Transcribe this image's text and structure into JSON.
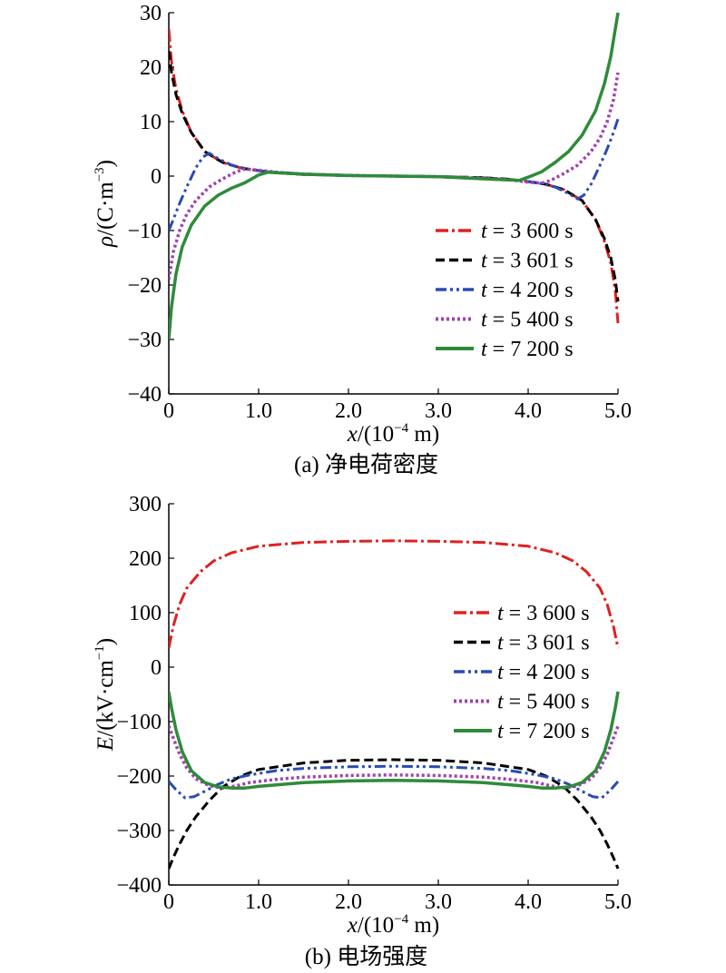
{
  "chart_data": [
    {
      "id": "a",
      "type": "line",
      "caption": "(a) 净电荷密度",
      "ylabel_symbol": "ρ",
      "ylabel_unit": "/(C·m",
      "ylabel_sup": "−3",
      "ylabel_close": ")",
      "xlabel_symbol": "x",
      "xlabel_unit": "/(10",
      "xlabel_sup": "−4",
      "xlabel_close": " m)",
      "xlim": [
        0,
        5
      ],
      "ylim": [
        -40,
        30
      ],
      "xticks": [
        0,
        1,
        2,
        3,
        4,
        5
      ],
      "xtick_labels": [
        "0",
        "1.0",
        "2.0",
        "3.0",
        "4.0",
        "5.0"
      ],
      "yticks": [
        -40,
        -30,
        -20,
        -10,
        0,
        10,
        20,
        30
      ],
      "ytick_labels": [
        "−40",
        "−30",
        "−20",
        "−10",
        "0",
        "10",
        "20",
        "30"
      ],
      "legend_position": "right",
      "series": [
        {
          "name": "t = 3 600 s",
          "color": "#e02020",
          "dash": "14,4,3,4",
          "width": 3,
          "x": [
            0,
            0.03,
            0.08,
            0.15,
            0.25,
            0.4,
            0.6,
            0.8,
            1.0,
            1.2,
            1.5,
            2.0,
            2.5,
            3.0,
            3.5,
            3.8,
            4.0,
            4.2,
            4.4,
            4.6,
            4.75,
            4.85,
            4.92,
            4.97,
            5.0
          ],
          "y": [
            27,
            21,
            16,
            12,
            8,
            4.5,
            2.5,
            1.5,
            1.0,
            0.6,
            0.3,
            0.1,
            0,
            -0.1,
            -0.3,
            -0.6,
            -1.0,
            -1.5,
            -2.5,
            -4.5,
            -8,
            -12,
            -16,
            -21,
            -27
          ]
        },
        {
          "name": "t = 3 601 s",
          "color": "#000000",
          "dash": "10,5",
          "width": 3,
          "x": [
            0,
            0.03,
            0.08,
            0.15,
            0.25,
            0.4,
            0.6,
            0.8,
            1.0,
            1.2,
            1.5,
            2.0,
            2.5,
            3.0,
            3.5,
            3.8,
            4.0,
            4.2,
            4.4,
            4.6,
            4.75,
            4.85,
            4.92,
            4.97,
            5.0
          ],
          "y": [
            23,
            19,
            15,
            11.5,
            8,
            4.5,
            2.5,
            1.5,
            1.0,
            0.6,
            0.3,
            0.1,
            0,
            -0.1,
            -0.3,
            -0.6,
            -1.0,
            -1.5,
            -2.5,
            -4.5,
            -8,
            -11.5,
            -15,
            -19,
            -23
          ]
        },
        {
          "name": "t = 4 200 s",
          "color": "#2a4bb5",
          "dash": "12,4,3,4,3,4",
          "width": 3,
          "x": [
            0,
            0.05,
            0.12,
            0.2,
            0.3,
            0.38,
            0.45,
            0.55,
            0.7,
            0.9,
            1.1,
            1.5,
            2.0,
            2.5,
            3.0,
            3.5,
            3.9,
            4.1,
            4.3,
            4.45,
            4.55,
            4.62,
            4.7,
            4.8,
            4.88,
            4.95,
            5.0
          ],
          "y": [
            -10,
            -8,
            -5,
            -2,
            1.5,
            3.5,
            4.2,
            3.2,
            2.0,
            1.2,
            0.8,
            0.4,
            0.15,
            0,
            -0.15,
            -0.4,
            -0.8,
            -1.2,
            -2.0,
            -3.2,
            -4.2,
            -3.5,
            -1.5,
            2,
            5,
            8,
            10.5
          ]
        },
        {
          "name": "t = 5 400 s",
          "color": "#a040b0",
          "dash": "3,3",
          "width": 3.5,
          "x": [
            0,
            0.05,
            0.12,
            0.2,
            0.3,
            0.45,
            0.6,
            0.75,
            0.85,
            1.0,
            1.2,
            1.5,
            2.0,
            2.5,
            3.0,
            3.5,
            3.8,
            4.0,
            4.15,
            4.25,
            4.4,
            4.55,
            4.7,
            4.8,
            4.88,
            4.95,
            5.0
          ],
          "y": [
            -19,
            -14,
            -10,
            -7,
            -4.5,
            -2,
            -0.5,
            0.8,
            1.3,
            1.1,
            0.7,
            0.35,
            0.1,
            0,
            -0.1,
            -0.35,
            -0.7,
            -1.1,
            -1.3,
            -0.8,
            0.5,
            2,
            4.5,
            7,
            10,
            14,
            19
          ]
        },
        {
          "name": "t = 7 200 s",
          "color": "#2e8b3a",
          "dash": "",
          "width": 3.5,
          "x": [
            0,
            0.03,
            0.08,
            0.15,
            0.25,
            0.4,
            0.55,
            0.7,
            0.85,
            1.0,
            1.1,
            1.5,
            2.0,
            2.5,
            3.0,
            3.5,
            3.9,
            4.0,
            4.15,
            4.3,
            4.45,
            4.6,
            4.75,
            4.85,
            4.92,
            4.97,
            5.0
          ],
          "y": [
            -30,
            -24,
            -18,
            -13,
            -9,
            -5.5,
            -3.5,
            -2.2,
            -1.2,
            0.2,
            0.7,
            0.35,
            0.1,
            0,
            -0.1,
            -0.5,
            -0.8,
            -0.2,
            0.8,
            2.5,
            4.5,
            7.5,
            12,
            17,
            22,
            27,
            30
          ]
        }
      ]
    },
    {
      "id": "b",
      "type": "line",
      "caption": "(b) 电场强度",
      "ylabel_symbol": "E",
      "ylabel_unit": "/(kV·cm",
      "ylabel_sup": "−1",
      "ylabel_close": ")",
      "xlabel_symbol": "x",
      "xlabel_unit": "/(10",
      "xlabel_sup": "−4",
      "xlabel_close": " m)",
      "xlim": [
        0,
        5
      ],
      "ylim": [
        -400,
        300
      ],
      "xticks": [
        0,
        1,
        2,
        3,
        4,
        5
      ],
      "xtick_labels": [
        "0",
        "1.0",
        "2.0",
        "3.0",
        "4.0",
        "5.0"
      ],
      "yticks": [
        -400,
        -300,
        -200,
        -100,
        0,
        100,
        200,
        300
      ],
      "ytick_labels": [
        "−400",
        "−300",
        "−200",
        "−100",
        "0",
        "100",
        "200",
        "300"
      ],
      "legend_position": "right",
      "series": [
        {
          "name": "t = 3 600 s",
          "color": "#e02020",
          "dash": "14,4,3,4",
          "width": 3,
          "x": [
            0,
            0.05,
            0.12,
            0.2,
            0.35,
            0.5,
            0.7,
            1.0,
            1.5,
            2.0,
            2.5,
            3.0,
            3.5,
            4.0,
            4.3,
            4.5,
            4.65,
            4.8,
            4.88,
            4.95,
            5.0
          ],
          "y": [
            35,
            75,
            115,
            145,
            175,
            195,
            210,
            222,
            229,
            231,
            232,
            231,
            229,
            222,
            210,
            195,
            175,
            145,
            115,
            75,
            35
          ]
        },
        {
          "name": "t = 3 601 s",
          "color": "#000000",
          "dash": "10,5",
          "width": 3,
          "x": [
            0,
            0.05,
            0.12,
            0.2,
            0.3,
            0.45,
            0.6,
            0.8,
            1.0,
            1.5,
            2.0,
            2.5,
            3.0,
            3.5,
            4.0,
            4.2,
            4.4,
            4.55,
            4.7,
            4.8,
            4.88,
            4.95,
            5.0
          ],
          "y": [
            -370,
            -350,
            -325,
            -300,
            -275,
            -245,
            -220,
            -200,
            -188,
            -176,
            -171,
            -170,
            -171,
            -176,
            -188,
            -200,
            -220,
            -245,
            -275,
            -300,
            -325,
            -350,
            -370
          ]
        },
        {
          "name": "t = 4 200 s",
          "color": "#2a4bb5",
          "dash": "12,4,3,4,3,4",
          "width": 3,
          "x": [
            0,
            0.08,
            0.18,
            0.28,
            0.4,
            0.55,
            0.7,
            0.9,
            1.2,
            1.5,
            2.0,
            2.5,
            3.0,
            3.5,
            3.8,
            4.1,
            4.3,
            4.45,
            4.6,
            4.72,
            4.82,
            4.92,
            5.0
          ],
          "y": [
            -210,
            -225,
            -240,
            -238,
            -228,
            -215,
            -205,
            -198,
            -190,
            -186,
            -183,
            -182,
            -183,
            -186,
            -190,
            -198,
            -205,
            -215,
            -228,
            -238,
            -240,
            -225,
            -210
          ]
        },
        {
          "name": "t = 5 400 s",
          "color": "#a040b0",
          "dash": "3,3",
          "width": 3.5,
          "x": [
            0,
            0.05,
            0.12,
            0.2,
            0.3,
            0.45,
            0.6,
            0.75,
            0.9,
            1.2,
            1.5,
            2.0,
            2.5,
            3.0,
            3.5,
            3.8,
            4.1,
            4.25,
            4.4,
            4.55,
            4.7,
            4.8,
            4.88,
            4.95,
            5.0
          ],
          "y": [
            -108,
            -130,
            -160,
            -185,
            -205,
            -218,
            -222,
            -218,
            -212,
            -206,
            -202,
            -199,
            -198,
            -199,
            -202,
            -206,
            -212,
            -218,
            -222,
            -218,
            -205,
            -185,
            -160,
            -130,
            -108
          ]
        },
        {
          "name": "t = 7 200 s",
          "color": "#2e8b3a",
          "dash": "",
          "width": 3.5,
          "x": [
            0,
            0.03,
            0.08,
            0.15,
            0.25,
            0.4,
            0.55,
            0.7,
            0.85,
            1.0,
            1.5,
            2.0,
            2.5,
            3.0,
            3.5,
            4.0,
            4.15,
            4.3,
            4.45,
            4.6,
            4.75,
            4.85,
            4.92,
            4.97,
            5.0
          ],
          "y": [
            -45,
            -75,
            -115,
            -155,
            -190,
            -212,
            -220,
            -222,
            -222,
            -219,
            -212,
            -209,
            -208,
            -209,
            -212,
            -219,
            -222,
            -222,
            -220,
            -212,
            -190,
            -155,
            -115,
            -75,
            -45
          ]
        }
      ]
    }
  ]
}
